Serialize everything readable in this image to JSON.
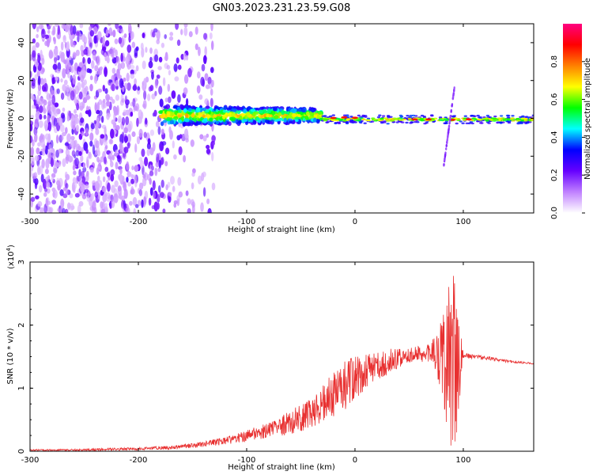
{
  "title": "GN03.2023.231.23.59.G08",
  "chart_data": [
    {
      "type": "heatmap",
      "xlabel": "Height of straight line (km)",
      "ylabel": "Frequency (Hz)",
      "xlim": [
        -300,
        165
      ],
      "ylim": [
        -50,
        50
      ],
      "x_ticks": [
        -300,
        -200,
        -100,
        0,
        100
      ],
      "y_ticks": [
        -40,
        -20,
        0,
        20,
        40
      ],
      "colorbar": {
        "label": "Normalized spectral amplitude",
        "range": [
          0,
          1
        ],
        "ticks": [
          "0.0",
          "0.2",
          "0.4",
          "0.6",
          "0.8"
        ],
        "stops": [
          "#ffffff",
          "#c080ff",
          "#6600ff",
          "#0000ff",
          "#00ffff",
          "#00ff00",
          "#ffff00",
          "#ff8000",
          "#ff0000",
          "#ff0080"
        ]
      },
      "features": [
        {
          "x_range": [
            -300,
            -130
          ],
          "y_range": [
            -50,
            50
          ],
          "amplitude": 0.1
        },
        {
          "x_range": [
            -180,
            -30
          ],
          "y_range": [
            -6,
            8
          ],
          "amplitude": 0.45
        },
        {
          "x_range": [
            -30,
            165
          ],
          "y_range": [
            -2,
            2
          ],
          "amplitude": 0.75
        },
        {
          "x_range": [
            82,
            92
          ],
          "y_range": [
            -25,
            17
          ],
          "amplitude": 0.15
        }
      ]
    },
    {
      "type": "line",
      "xlabel": "Height of straight line (km)",
      "ylabel": "SNR (10 * v/v)",
      "scale_label": "(x10",
      "scale_exp": "4",
      "scale_close": ")",
      "xlim": [
        -300,
        165
      ],
      "ylim": [
        0,
        3
      ],
      "x_ticks": [
        -300,
        -200,
        -100,
        0,
        100
      ],
      "y_ticks": [
        0,
        1,
        2,
        3
      ],
      "color": "#e83030",
      "envelope": {
        "x": [
          -300,
          -250,
          -200,
          -170,
          -150,
          -120,
          -100,
          -80,
          -60,
          -40,
          -20,
          0,
          20,
          40,
          60,
          75,
          85,
          90,
          95,
          100,
          120,
          140,
          165
        ],
        "y": [
          0.02,
          0.02,
          0.04,
          0.06,
          0.09,
          0.16,
          0.24,
          0.34,
          0.45,
          0.62,
          0.9,
          1.15,
          1.35,
          1.48,
          1.55,
          1.55,
          1.45,
          1.3,
          1.45,
          1.52,
          1.48,
          1.43,
          1.39
        ]
      },
      "noise_amplitude": {
        "x": [
          -300,
          -160,
          -120,
          -80,
          -40,
          -10,
          20,
          50,
          70,
          80,
          88,
          92,
          96,
          100,
          165
        ],
        "y": [
          0.01,
          0.03,
          0.06,
          0.12,
          0.25,
          0.4,
          0.25,
          0.12,
          0.15,
          0.6,
          1.4,
          1.5,
          0.8,
          0.04,
          0.01
        ]
      }
    }
  ]
}
